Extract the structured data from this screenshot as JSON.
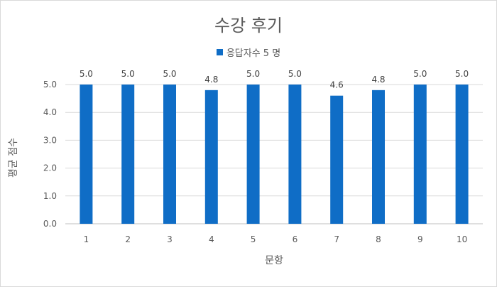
{
  "chart_data": {
    "type": "bar",
    "title": "수강 후기",
    "xlabel": "문항",
    "ylabel": "평균 점수",
    "categories": [
      "1",
      "2",
      "3",
      "4",
      "5",
      "6",
      "7",
      "8",
      "9",
      "10"
    ],
    "series": [
      {
        "name": "응답자수 5 명",
        "values": [
          5.0,
          5.0,
          5.0,
          4.8,
          5.0,
          5.0,
          4.6,
          4.8,
          5.0,
          5.0
        ],
        "data_labels": [
          "5.0",
          "5.0",
          "5.0",
          "4.8",
          "5.0",
          "5.0",
          "4.6",
          "4.8",
          "5.0",
          "5.0"
        ],
        "color": "#0f6dc6"
      }
    ],
    "yticks": [
      "0.0",
      "1.0",
      "2.0",
      "3.0",
      "4.0",
      "5.0"
    ],
    "ylim": [
      0,
      5
    ],
    "grid": true,
    "legend_position": "top"
  }
}
